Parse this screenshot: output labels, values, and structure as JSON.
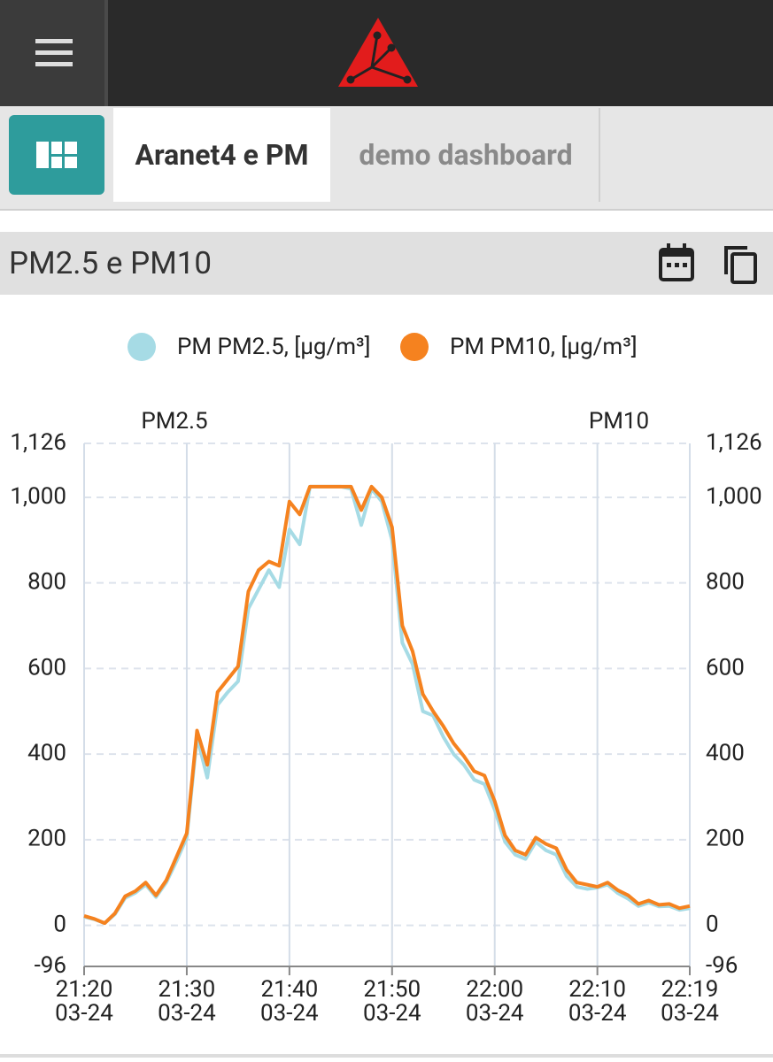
{
  "tabs": [
    "Aranet4 e PM",
    "demo dashboard"
  ],
  "panel": {
    "title": "PM2.5 e PM10"
  },
  "chart_data": {
    "type": "line",
    "y_label": "PM2.5",
    "y2_label": "PM10",
    "x": [
      "21:20",
      "21:21",
      "21:22",
      "21:23",
      "21:24",
      "21:25",
      "21:26",
      "21:27",
      "21:28",
      "21:29",
      "21:30",
      "21:31",
      "21:32",
      "21:33",
      "21:34",
      "21:35",
      "21:36",
      "21:37",
      "21:38",
      "21:39",
      "21:40",
      "21:41",
      "21:42",
      "21:43",
      "21:44",
      "21:45",
      "21:46",
      "21:47",
      "21:48",
      "21:49",
      "21:50",
      "21:51",
      "21:52",
      "21:53",
      "21:54",
      "21:55",
      "21:56",
      "21:57",
      "21:58",
      "21:59",
      "22:00",
      "22:01",
      "22:02",
      "22:03",
      "22:04",
      "22:05",
      "22:06",
      "22:07",
      "22:08",
      "22:09",
      "22:10",
      "22:11",
      "22:12",
      "22:13",
      "22:14",
      "22:15",
      "22:16",
      "22:17",
      "22:18",
      "22:19"
    ],
    "series": [
      {
        "name": "PM PM2.5, [µg/m³]",
        "color": "#a6dbe5",
        "values": [
          20,
          14,
          5,
          26,
          64,
          76,
          95,
          66,
          100,
          150,
          205,
          440,
          345,
          515,
          545,
          570,
          740,
          785,
          830,
          790,
          925,
          890,
          1025,
          1025,
          1025,
          1025,
          1020,
          935,
          1020,
          990,
          900,
          660,
          610,
          500,
          490,
          440,
          400,
          375,
          340,
          330,
          270,
          195,
          165,
          155,
          195,
          175,
          165,
          115,
          90,
          85,
          88,
          95,
          75,
          62,
          45,
          53,
          44,
          45,
          36,
          40
        ]
      },
      {
        "name": "PM PM10, [µg/m³]",
        "color": "#f5821f",
        "axis": "y2",
        "values": [
          22,
          15,
          5,
          28,
          68,
          80,
          100,
          70,
          105,
          160,
          215,
          455,
          375,
          545,
          575,
          605,
          780,
          830,
          850,
          840,
          990,
          960,
          1025,
          1025,
          1025,
          1025,
          1025,
          970,
          1025,
          1000,
          930,
          700,
          640,
          540,
          500,
          465,
          425,
          395,
          360,
          350,
          290,
          210,
          175,
          165,
          205,
          190,
          180,
          130,
          100,
          95,
          90,
          100,
          82,
          70,
          50,
          58,
          48,
          50,
          40,
          45
        ]
      }
    ],
    "ylim": [
      -96,
      1126
    ],
    "yticks": [
      {
        "value": -96,
        "label": "-96"
      },
      0,
      200,
      400,
      600,
      800,
      {
        "value": 1000,
        "label": "1,000"
      },
      {
        "value": 1126,
        "label": "1,126"
      }
    ],
    "y2lim": [
      -96,
      1126
    ],
    "y2ticks": [
      {
        "value": -96,
        "label": "-96"
      },
      0,
      200,
      400,
      600,
      800,
      {
        "value": 1000,
        "label": "1,000"
      },
      {
        "value": 1126,
        "label": "1,126"
      }
    ],
    "xticks": [
      {
        "time": "21:20",
        "date": "03-24"
      },
      {
        "time": "21:30",
        "date": "03-24"
      },
      {
        "time": "21:40",
        "date": "03-24"
      },
      {
        "time": "21:50",
        "date": "03-24"
      },
      {
        "time": "22:00",
        "date": "03-24"
      },
      {
        "time": "22:10",
        "date": "03-24"
      },
      {
        "time": "22:19",
        "date": "03-24"
      }
    ],
    "grid": true
  }
}
